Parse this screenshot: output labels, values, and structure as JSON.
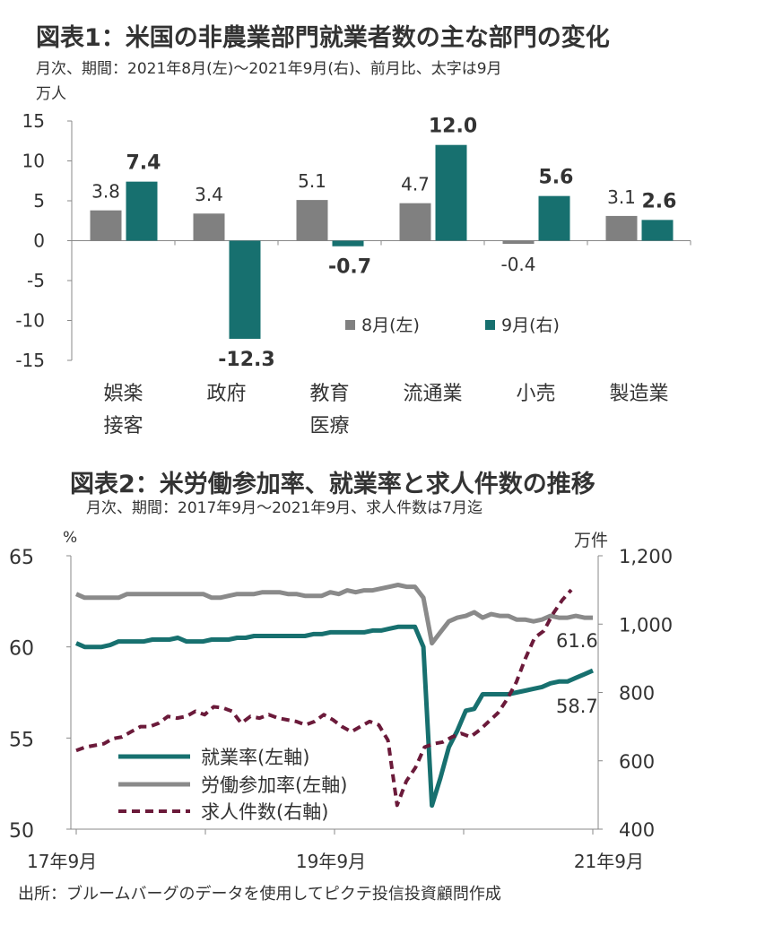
{
  "chart1": {
    "title": "図表1：米国の非農業部門就業者数の主な部門の変化",
    "subtitle": "月次、期間：2021年8月(左)～2021年9月(右)、前月比、太字は9月",
    "unit": "万人",
    "legend": [
      "8月(左)",
      "9月(右)"
    ]
  },
  "chart2": {
    "title": "図表2：米労働参加率、就業率と求人件数の推移",
    "subtitle": "月次、期間：2017年9月～2021年9月、求人件数は7月迄",
    "left_unit": "%",
    "right_unit": "万件",
    "x_tick_labels": [
      "17年9月",
      "19年9月",
      "21年9月"
    ],
    "legend": [
      "就業率(左軸)",
      "労働参加率(左軸)",
      "求人件数(右軸)"
    ],
    "end_labels": [
      "61.6",
      "58.7"
    ]
  },
  "source": "出所：ブルームバーグのデータを使用してピクテ投信投資顧問作成",
  "colors": {
    "aug": "#808080",
    "sep": "#17706f",
    "participation": "#8a8a8a",
    "employment": "#17706f",
    "openings": "#6b1a3a"
  },
  "chart_data": [
    {
      "type": "bar",
      "categories": [
        "娯楽\n接客",
        "政府",
        "教育\n医療",
        "流通業",
        "小売",
        "製造業"
      ],
      "series": [
        {
          "name": "8月(左)",
          "values": [
            3.8,
            3.4,
            5.1,
            4.7,
            -0.4,
            3.1
          ]
        },
        {
          "name": "9月(右)",
          "values": [
            7.4,
            -12.3,
            -0.7,
            12.0,
            5.6,
            2.6
          ]
        }
      ],
      "ylim": [
        -15,
        15
      ],
      "yticks": [
        "15",
        "10",
        "5",
        "0",
        "-5",
        "-10",
        "-15"
      ],
      "value_labels": {
        "aug": [
          "3.8",
          "3.4",
          "5.1",
          "4.7",
          "-0.4",
          "3.1"
        ],
        "sep": [
          "7.4",
          "-12.3",
          "-0.7",
          "12.0",
          "5.6",
          "2.6"
        ]
      },
      "legend_position": "lower-right"
    },
    {
      "type": "line",
      "x_range": [
        "2017-09",
        "2021-09"
      ],
      "left_ylim": [
        50,
        65
      ],
      "right_ylim": [
        400,
        1200
      ],
      "left_ticks": [
        "65",
        "60",
        "55",
        "50"
      ],
      "right_ticks": [
        "1,200",
        "1,000",
        "800",
        "600",
        "400"
      ],
      "series": [
        {
          "name": "労働参加率(左軸)",
          "axis": "left",
          "values": [
            62.9,
            62.7,
            62.7,
            62.7,
            62.7,
            62.7,
            62.9,
            62.9,
            62.9,
            62.9,
            62.9,
            62.9,
            62.9,
            62.9,
            62.9,
            62.9,
            62.7,
            62.7,
            62.8,
            62.9,
            62.9,
            62.9,
            63.0,
            63.0,
            63.0,
            62.9,
            62.9,
            62.8,
            62.8,
            62.8,
            63.0,
            62.9,
            63.1,
            63.0,
            63.1,
            63.1,
            63.2,
            63.3,
            63.4,
            63.3,
            63.3,
            62.7,
            60.2,
            60.8,
            61.4,
            61.6,
            61.7,
            61.9,
            61.6,
            61.8,
            61.7,
            61.7,
            61.5,
            61.5,
            61.4,
            61.5,
            61.7,
            61.6,
            61.6,
            61.7,
            61.6,
            61.6
          ]
        },
        {
          "name": "就業率(左軸)",
          "axis": "left",
          "values": [
            60.2,
            60.0,
            60.0,
            60.0,
            60.1,
            60.3,
            60.3,
            60.3,
            60.3,
            60.4,
            60.4,
            60.4,
            60.5,
            60.3,
            60.3,
            60.3,
            60.4,
            60.4,
            60.4,
            60.5,
            60.5,
            60.6,
            60.6,
            60.6,
            60.6,
            60.6,
            60.6,
            60.6,
            60.7,
            60.7,
            60.8,
            60.8,
            60.8,
            60.8,
            60.8,
            60.9,
            60.9,
            61.0,
            61.1,
            61.1,
            61.1,
            60.0,
            51.3,
            52.8,
            54.5,
            55.4,
            56.5,
            56.6,
            57.4,
            57.4,
            57.4,
            57.4,
            57.5,
            57.6,
            57.7,
            57.8,
            58.0,
            58.1,
            58.1,
            58.3,
            58.5,
            58.7
          ]
        },
        {
          "name": "求人件数(右軸)",
          "axis": "right",
          "values": [
            630,
            640,
            645,
            650,
            665,
            670,
            685,
            700,
            700,
            710,
            730,
            725,
            730,
            745,
            735,
            758,
            755,
            745,
            710,
            730,
            725,
            735,
            725,
            720,
            715,
            705,
            715,
            735,
            720,
            700,
            685,
            700,
            715,
            705,
            660,
            470,
            540,
            580,
            640,
            650,
            655,
            670,
            680,
            670,
            690,
            715,
            740,
            780,
            830,
            900,
            960,
            980,
            1030,
            1070,
            1100
          ]
        }
      ],
      "legend_position": "lower-left"
    }
  ]
}
